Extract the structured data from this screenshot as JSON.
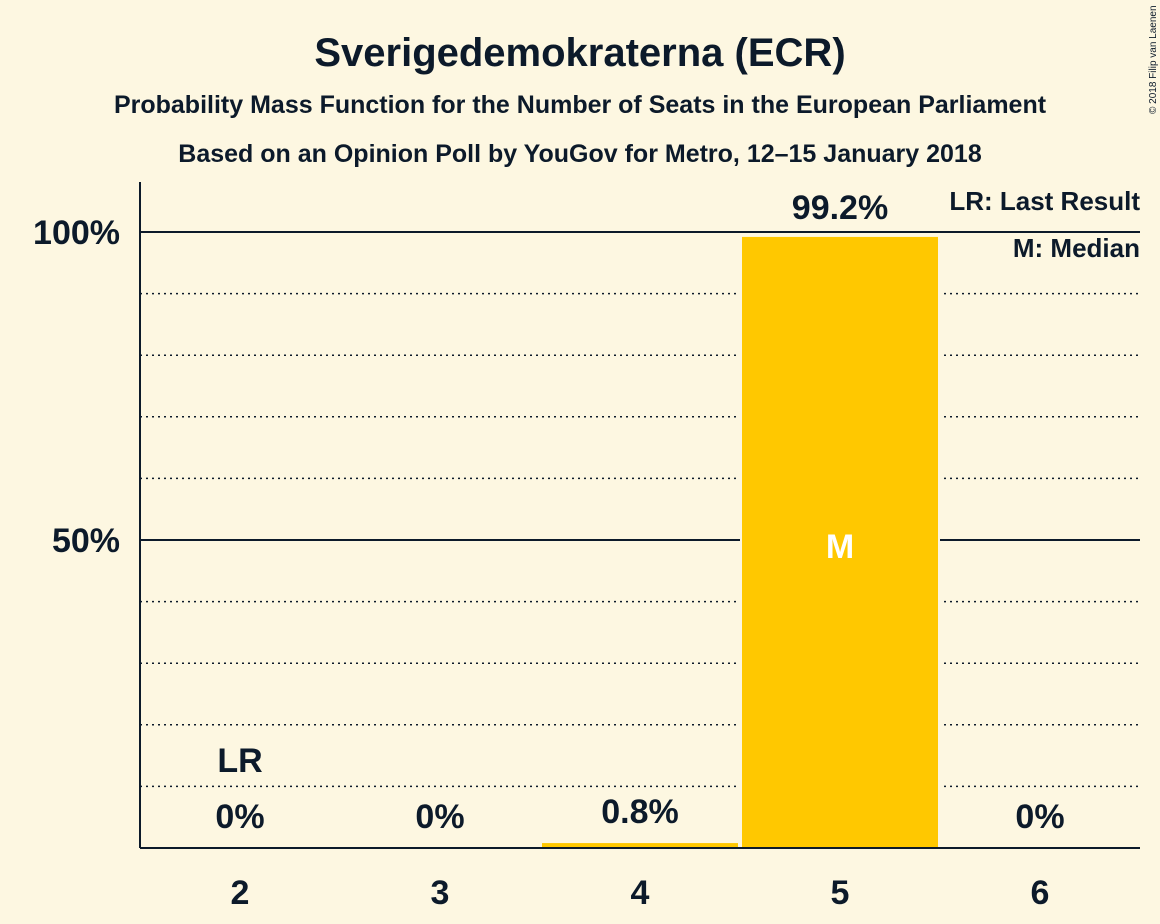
{
  "chart_data": {
    "type": "bar",
    "title": "Sverigedemokraterna (ECR)",
    "subtitle": "Probability Mass Function for the Number of Seats in the European Parliament",
    "subtitle2": "Based on an Opinion Poll by YouGov for Metro, 12–15 January 2018",
    "copyright": "© 2018 Filip van Laenen",
    "categories": [
      "2",
      "3",
      "4",
      "5",
      "6"
    ],
    "values": [
      0,
      0,
      0.8,
      99.2,
      0
    ],
    "data_labels": [
      "0%",
      "0%",
      "0.8%",
      "99.2%",
      "0%"
    ],
    "last_result_category": "2",
    "last_result_label": "LR",
    "median_category": "5",
    "median_label": "M",
    "ylim": [
      0,
      110
    ],
    "yticks": [
      {
        "value": 50,
        "label": "50%"
      },
      {
        "value": 100,
        "label": "100%"
      }
    ],
    "minor_gridlines": [
      10,
      20,
      30,
      40,
      60,
      70,
      80,
      90
    ],
    "legend": {
      "placement": "top-right",
      "entries": [
        "LR: Last Result",
        "M: Median"
      ]
    },
    "colors": {
      "bar": "#ffc800",
      "background": "#fdf7e1",
      "text": "#0c1a2a",
      "median_text": "#ffffff"
    }
  }
}
